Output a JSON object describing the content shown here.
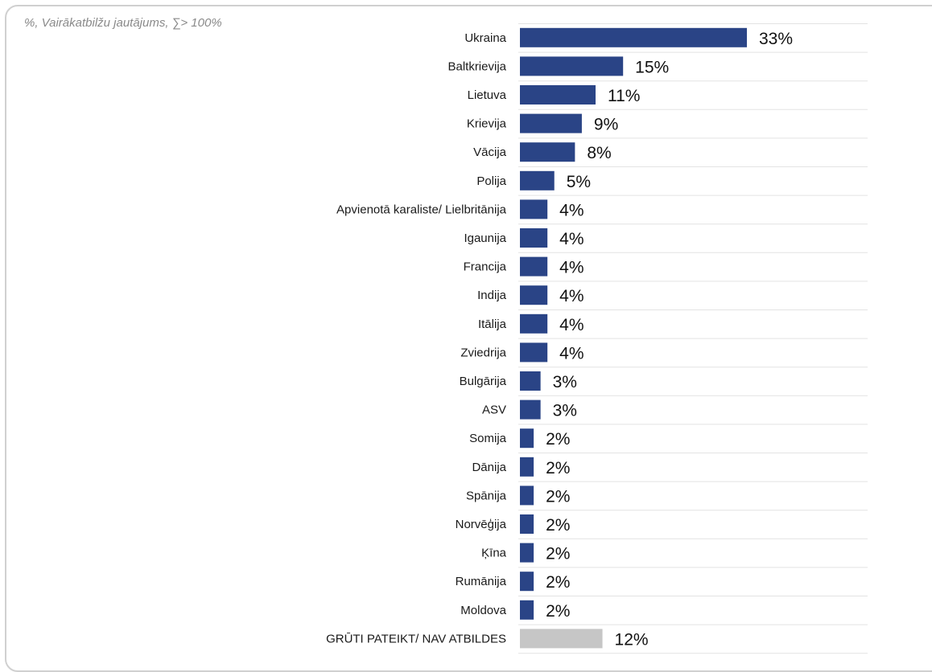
{
  "subtitle": "%, Vairākatbilžu jautājums, ∑> 100%",
  "colors": {
    "bar": "#2a4486",
    "bar_other": "#c6c6c6",
    "separator": "#e3e3e3",
    "frame": "#d0d0d0"
  },
  "chart_data": {
    "type": "bar",
    "orientation": "horizontal",
    "title": "",
    "xlabel": "",
    "ylabel": "",
    "unit": "%",
    "xlim": [
      0,
      33
    ],
    "grid": false,
    "categories": [
      "Ukraina",
      "Baltkrievija",
      "Lietuva",
      "Krievija",
      "Vācija",
      "Polija",
      "Apvienotā karaliste/ Lielbritānija",
      "Igaunija",
      "Francija",
      "Indija",
      "Itālija",
      "Zviedrija",
      "Bulgārija",
      "ASV",
      "Somija",
      "Dānija",
      "Spānija",
      "Norvēģija",
      "Ķīna",
      "Rumānija",
      "Moldova",
      "GRŪTI PATEIKT/ NAV ATBILDES"
    ],
    "values": [
      33,
      15,
      11,
      9,
      8,
      5,
      4,
      4,
      4,
      4,
      4,
      4,
      3,
      3,
      2,
      2,
      2,
      2,
      2,
      2,
      2,
      12
    ],
    "value_labels": [
      "33%",
      "15%",
      "11%",
      "9%",
      "8%",
      "5%",
      "4%",
      "4%",
      "4%",
      "4%",
      "4%",
      "4%",
      "3%",
      "3%",
      "2%",
      "2%",
      "2%",
      "2%",
      "2%",
      "2%",
      "2%",
      "12%"
    ]
  }
}
